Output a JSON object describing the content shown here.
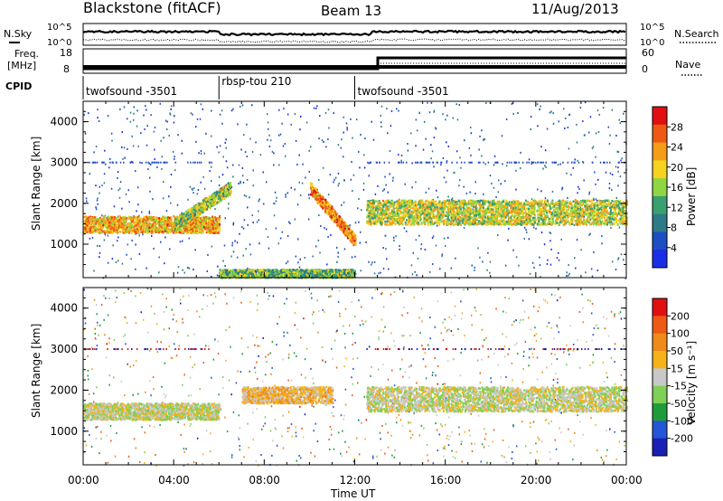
{
  "header": {
    "radar": "Blackstone (fitACF)",
    "beam": "Beam 13",
    "date": "11/Aug/2013"
  },
  "noise_panel": {
    "left_label": "N.Sky",
    "right_label": "N.Search",
    "ticks_left": [
      "10^5",
      "10^0"
    ],
    "ticks_right": [
      "10^5",
      "10^0"
    ]
  },
  "freq_panel": {
    "left_label_line1": "Freq.",
    "left_label_line2": "[MHz]",
    "left_ticks": [
      "18",
      "8"
    ],
    "right_label": "Nave",
    "right_ticks": [
      "60",
      "0"
    ]
  },
  "cpid": {
    "label": "CPID",
    "segments": [
      {
        "name": "twofsound -3501",
        "start_hr": 0,
        "end_hr": 6
      },
      {
        "name": "rbsp-tou 210",
        "start_hr": 6,
        "end_hr": 12
      },
      {
        "name": "twofsound -3501",
        "start_hr": 12,
        "end_hr": 24
      }
    ]
  },
  "x_axis": {
    "label": "Time UT",
    "ticks": [
      "00:00",
      "04:00",
      "08:00",
      "12:00",
      "16:00",
      "20:00",
      "00:00"
    ],
    "range_hr": [
      0,
      24
    ]
  },
  "chart_data": [
    {
      "type": "heatmap",
      "title": "",
      "xlabel": "",
      "ylabel": "Slant Range [km]",
      "ylim": [
        180,
        4500
      ],
      "yticks": [
        "4000",
        "3000",
        "2000",
        "1000"
      ],
      "colorbar": {
        "label": "Power [dB]",
        "ticks": [
          "28",
          "24",
          "20",
          "16",
          "12",
          "8",
          "4"
        ],
        "range": [
          0,
          32
        ],
        "colors": [
          "#1a2ee6",
          "#1d4ec3",
          "#2e7a87",
          "#3aa070",
          "#8fd642",
          "#f5d31e",
          "#f59d19",
          "#ee5a14",
          "#e01010"
        ]
      },
      "features": [
        {
          "region": "main band",
          "t_hr": [
            0,
            6
          ],
          "range_km": [
            1300,
            1700
          ],
          "power_db": 22
        },
        {
          "region": "rising arc",
          "t_hr": [
            4,
            6.5
          ],
          "range_km": [
            1500,
            2500
          ],
          "power_db": 16
        },
        {
          "region": "descending arc",
          "t_hr": [
            10,
            12
          ],
          "range_km": [
            900,
            2400
          ],
          "power_db": 24
        },
        {
          "region": "post 12UT band",
          "t_hr": [
            12.5,
            24
          ],
          "range_km": [
            1500,
            2100
          ],
          "power_db": 18
        },
        {
          "region": "near-range echoes",
          "t_hr": [
            6,
            12
          ],
          "range_km": [
            200,
            400
          ],
          "power_db": 14
        }
      ]
    },
    {
      "type": "heatmap",
      "title": "",
      "xlabel": "Time UT",
      "ylabel": "Slant Range [km]",
      "ylim": [
        180,
        4500
      ],
      "yticks": [
        "4000",
        "3000",
        "2000",
        "1000"
      ],
      "colorbar": {
        "label": "Velocity [m s⁻¹]",
        "ticks": [
          "200",
          "100",
          "50",
          "15",
          "-15",
          "-50",
          "-100",
          "-200"
        ],
        "range": [
          -250,
          250
        ],
        "colors": [
          "#1a1fb5",
          "#2456d8",
          "#1e9c3a",
          "#7fd056",
          "#c8c8c8",
          "#f5b319",
          "#f08a19",
          "#ee5a14",
          "#e01010"
        ]
      },
      "features": [
        {
          "region": "main band",
          "t_hr": [
            0,
            6
          ],
          "range_km": [
            1300,
            1700
          ],
          "velocity_ms": 0
        },
        {
          "region": "mid-day patch",
          "t_hr": [
            7,
            11
          ],
          "range_km": [
            1700,
            2100
          ],
          "velocity_ms": 50
        },
        {
          "region": "post 12UT band",
          "t_hr": [
            12.5,
            24
          ],
          "range_km": [
            1500,
            2100
          ],
          "velocity_ms": 0
        }
      ]
    }
  ]
}
